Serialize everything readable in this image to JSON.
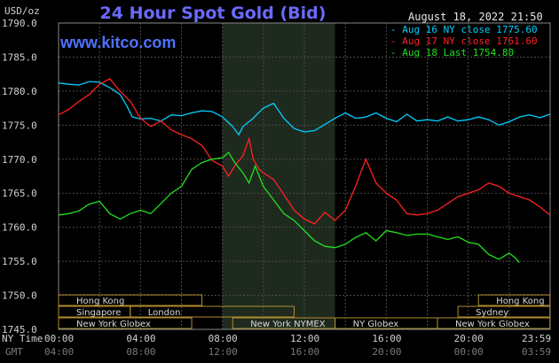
{
  "header": {
    "unit": "USD/oz",
    "title": "24 Hour Spot Gold (Bid)",
    "brand": "www.kitco.com",
    "timestamp": "August 18, 2022 21:50"
  },
  "legend": [
    {
      "label": "- Aug 16 NY close 1775.60",
      "color": "#00cfff"
    },
    {
      "label": "- Aug 17 NY close 1761.60",
      "color": "#ff2020"
    },
    {
      "label": "- Aug 18 Last 1754.80",
      "color": "#20e020"
    }
  ],
  "axis": {
    "y_ticks": [
      "1790.0",
      "1785.0",
      "1780.0",
      "1775.0",
      "1770.0",
      "1765.0",
      "1760.0",
      "1755.0",
      "1750.0",
      "1745.0"
    ],
    "x_ticks_ny": [
      "00:00",
      "04:00",
      "08:00",
      "12:00",
      "16:00",
      "20:00",
      "23:59"
    ],
    "x_ticks_gmt": [
      "04:00",
      "08:00",
      "12:00",
      "16:00",
      "20:00",
      "00:00",
      "03:59"
    ],
    "ny_time_label": "NY Time",
    "gmt_label": "GMT"
  },
  "sessions": [
    {
      "label": "Hong Kong",
      "row": 0,
      "start": 0.0,
      "end": 7.0
    },
    {
      "label": "Hong Kong",
      "row": 0,
      "start": 20.5,
      "end": 23.99
    },
    {
      "label": "Singapore",
      "row": 1,
      "start": 0.0,
      "end": 3.5
    },
    {
      "label": "London",
      "row": 1,
      "start": 3.5,
      "end": 11.5
    },
    {
      "label": "Sydney",
      "row": 1,
      "start": 19.5,
      "end": 23.99
    },
    {
      "label": "New York Globex",
      "row": 2,
      "start": 0.0,
      "end": 6.5
    },
    {
      "label": "New York NYMEX",
      "row": 2,
      "start": 8.5,
      "end": 13.5
    },
    {
      "label": "NY Globex",
      "row": 2,
      "start": 13.5,
      "end": 18.5
    },
    {
      "label": "New York Globex",
      "row": 2,
      "start": 18.5,
      "end": 23.99
    }
  ],
  "chart_data": {
    "type": "line",
    "title": "24 Hour Spot Gold (Bid)",
    "ylabel": "USD/oz",
    "ylim": [
      1745,
      1790
    ],
    "xlim_hours": [
      0,
      24
    ],
    "grid": true,
    "highlight_hours": [
      8.0,
      13.5
    ],
    "series": [
      {
        "name": "Aug 16 NY close 1775.60",
        "color": "#00cfff",
        "points": [
          [
            0,
            1781.2
          ],
          [
            0.5,
            1781.0
          ],
          [
            1,
            1780.9
          ],
          [
            1.5,
            1781.4
          ],
          [
            2,
            1781.3
          ],
          [
            2.5,
            1780.5
          ],
          [
            3,
            1779.5
          ],
          [
            3.3,
            1778.0
          ],
          [
            3.6,
            1776.2
          ],
          [
            4,
            1775.9
          ],
          [
            4.5,
            1776.0
          ],
          [
            5,
            1775.6
          ],
          [
            5.5,
            1776.5
          ],
          [
            6,
            1776.4
          ],
          [
            6.5,
            1776.8
          ],
          [
            7,
            1777.1
          ],
          [
            7.5,
            1777.0
          ],
          [
            8,
            1776.2
          ],
          [
            8.5,
            1774.8
          ],
          [
            8.8,
            1773.6
          ],
          [
            9,
            1774.8
          ],
          [
            9.5,
            1776.0
          ],
          [
            10,
            1777.5
          ],
          [
            10.5,
            1778.2
          ],
          [
            11,
            1776.0
          ],
          [
            11.5,
            1774.5
          ],
          [
            12,
            1774.0
          ],
          [
            12.5,
            1774.2
          ],
          [
            13,
            1775.1
          ],
          [
            13.5,
            1776.0
          ],
          [
            14,
            1776.8
          ],
          [
            14.5,
            1776.0
          ],
          [
            15,
            1776.2
          ],
          [
            15.5,
            1776.8
          ],
          [
            16,
            1776.0
          ],
          [
            16.5,
            1775.5
          ],
          [
            17,
            1776.6
          ],
          [
            17.5,
            1775.6
          ],
          [
            18,
            1775.8
          ],
          [
            18.5,
            1775.6
          ],
          [
            19,
            1776.2
          ],
          [
            19.5,
            1775.6
          ],
          [
            20,
            1775.8
          ],
          [
            20.5,
            1776.2
          ],
          [
            21,
            1775.8
          ],
          [
            21.5,
            1775.0
          ],
          [
            22,
            1775.5
          ],
          [
            22.5,
            1776.2
          ],
          [
            23,
            1776.5
          ],
          [
            23.5,
            1776.1
          ],
          [
            23.99,
            1776.6
          ]
        ]
      },
      {
        "name": "Aug 17 NY close 1761.60",
        "color": "#ff2020",
        "points": [
          [
            0,
            1776.5
          ],
          [
            0.5,
            1777.3
          ],
          [
            1,
            1778.5
          ],
          [
            1.5,
            1779.5
          ],
          [
            2,
            1781.0
          ],
          [
            2.5,
            1781.8
          ],
          [
            3,
            1780.0
          ],
          [
            3.5,
            1778.5
          ],
          [
            4,
            1776.0
          ],
          [
            4.5,
            1774.8
          ],
          [
            5,
            1775.6
          ],
          [
            5.5,
            1774.3
          ],
          [
            6,
            1773.6
          ],
          [
            6.5,
            1773.0
          ],
          [
            7,
            1772.0
          ],
          [
            7.5,
            1769.8
          ],
          [
            8,
            1769.0
          ],
          [
            8.3,
            1767.5
          ],
          [
            8.6,
            1769.0
          ],
          [
            9,
            1770.5
          ],
          [
            9.3,
            1773.0
          ],
          [
            9.5,
            1770.0
          ],
          [
            9.8,
            1768.5
          ],
          [
            10,
            1768.0
          ],
          [
            10.5,
            1767.0
          ],
          [
            11,
            1764.8
          ],
          [
            11.5,
            1762.5
          ],
          [
            12,
            1761.2
          ],
          [
            12.5,
            1760.5
          ],
          [
            13,
            1762.2
          ],
          [
            13.5,
            1761.0
          ],
          [
            14,
            1762.5
          ],
          [
            14.5,
            1766.0
          ],
          [
            15,
            1770.0
          ],
          [
            15.5,
            1766.5
          ],
          [
            16,
            1765.0
          ],
          [
            16.5,
            1764.0
          ],
          [
            17,
            1762.0
          ],
          [
            17.5,
            1761.8
          ],
          [
            18,
            1762.0
          ],
          [
            18.5,
            1762.5
          ],
          [
            19,
            1763.5
          ],
          [
            19.5,
            1764.5
          ],
          [
            20,
            1765.0
          ],
          [
            20.5,
            1765.5
          ],
          [
            21,
            1766.5
          ],
          [
            21.5,
            1766.0
          ],
          [
            22,
            1765.0
          ],
          [
            22.5,
            1764.5
          ],
          [
            23,
            1764.0
          ],
          [
            23.5,
            1763.0
          ],
          [
            23.99,
            1761.8
          ]
        ]
      },
      {
        "name": "Aug 18 Last 1754.80",
        "color": "#20e020",
        "points": [
          [
            0,
            1761.8
          ],
          [
            0.5,
            1762.0
          ],
          [
            1,
            1762.4
          ],
          [
            1.5,
            1763.4
          ],
          [
            2,
            1763.8
          ],
          [
            2.5,
            1762.0
          ],
          [
            3,
            1761.2
          ],
          [
            3.5,
            1762.0
          ],
          [
            4,
            1762.5
          ],
          [
            4.5,
            1762.0
          ],
          [
            5,
            1763.5
          ],
          [
            5.5,
            1765.0
          ],
          [
            6,
            1766.0
          ],
          [
            6.5,
            1768.5
          ],
          [
            7,
            1769.5
          ],
          [
            7.5,
            1770.0
          ],
          [
            8,
            1770.2
          ],
          [
            8.3,
            1771.0
          ],
          [
            8.6,
            1769.5
          ],
          [
            9,
            1768.0
          ],
          [
            9.3,
            1766.5
          ],
          [
            9.6,
            1769.0
          ],
          [
            10,
            1766.0
          ],
          [
            10.5,
            1764.0
          ],
          [
            11,
            1762.0
          ],
          [
            11.5,
            1761.0
          ],
          [
            12,
            1759.5
          ],
          [
            12.5,
            1758.0
          ],
          [
            13,
            1757.2
          ],
          [
            13.5,
            1757.0
          ],
          [
            14,
            1757.5
          ],
          [
            14.5,
            1758.5
          ],
          [
            15,
            1759.2
          ],
          [
            15.5,
            1758.0
          ],
          [
            16,
            1759.5
          ],
          [
            16.5,
            1759.2
          ],
          [
            17,
            1758.8
          ],
          [
            17.5,
            1759.0
          ],
          [
            18,
            1759.0
          ],
          [
            18.5,
            1758.6
          ],
          [
            19,
            1758.2
          ],
          [
            19.5,
            1758.6
          ],
          [
            20,
            1757.8
          ],
          [
            20.5,
            1757.5
          ],
          [
            21,
            1756.0
          ],
          [
            21.5,
            1755.3
          ],
          [
            22,
            1756.2
          ],
          [
            22.3,
            1755.5
          ],
          [
            22.5,
            1754.8
          ]
        ]
      }
    ]
  }
}
